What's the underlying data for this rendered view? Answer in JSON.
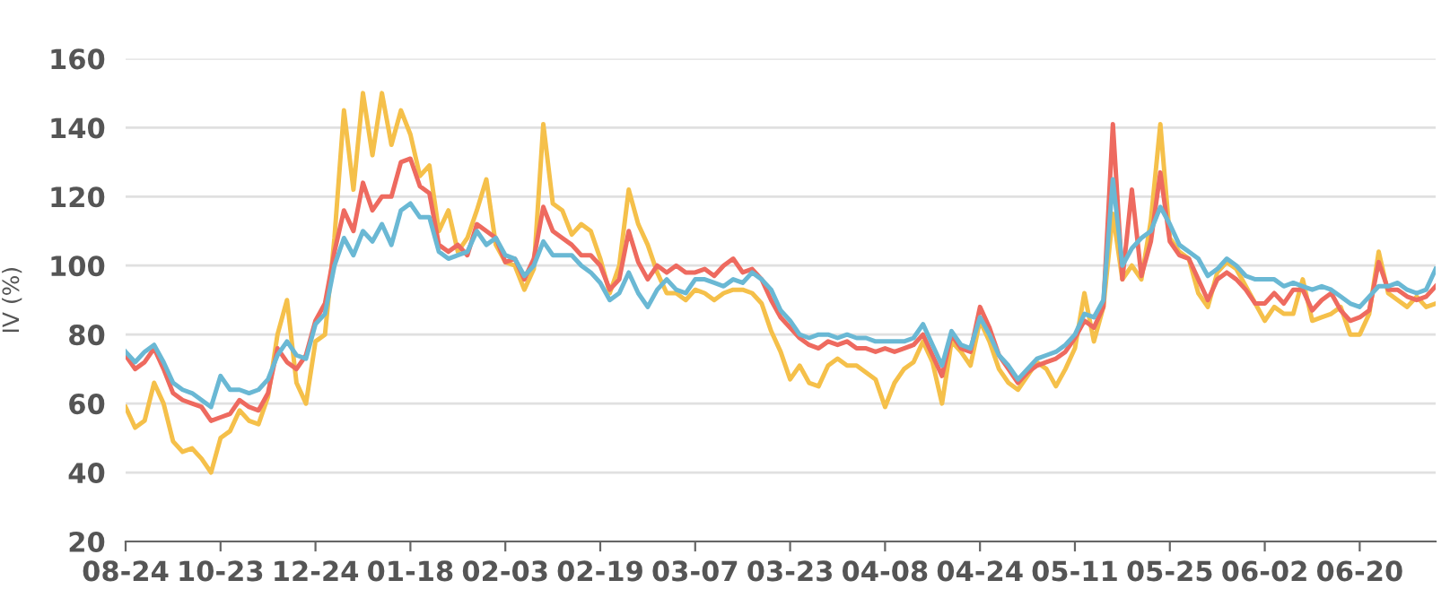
{
  "chart_data": {
    "type": "line",
    "ylabel": "IV (%)",
    "ylim": [
      20,
      160
    ],
    "yticks": [
      20,
      40,
      60,
      80,
      100,
      120,
      140,
      160
    ],
    "grid": "y",
    "marker": "none",
    "line_style": "solid",
    "categories": [
      "08-24",
      null,
      null,
      null,
      null,
      null,
      null,
      null,
      null,
      null,
      "10-23",
      null,
      null,
      null,
      null,
      null,
      null,
      null,
      null,
      null,
      "12-24",
      null,
      null,
      null,
      null,
      null,
      null,
      null,
      null,
      null,
      "01-18",
      null,
      null,
      null,
      null,
      null,
      null,
      null,
      null,
      null,
      "02-03",
      null,
      null,
      null,
      null,
      null,
      null,
      null,
      null,
      null,
      "02-19",
      null,
      null,
      null,
      null,
      null,
      null,
      null,
      null,
      null,
      "03-07",
      null,
      null,
      null,
      null,
      null,
      null,
      null,
      null,
      null,
      "03-23",
      null,
      null,
      null,
      null,
      null,
      null,
      null,
      null,
      null,
      "04-08",
      null,
      null,
      null,
      null,
      null,
      null,
      null,
      null,
      null,
      "04-24",
      null,
      null,
      null,
      null,
      null,
      null,
      null,
      null,
      null,
      "05-11",
      null,
      null,
      null,
      null,
      null,
      null,
      null,
      null,
      null,
      "05-25",
      null,
      null,
      null,
      null,
      null,
      null,
      null,
      null,
      null,
      "06-02",
      null,
      null,
      null,
      null,
      null,
      null,
      null,
      null,
      null,
      "06-20",
      null,
      null,
      null,
      null,
      null,
      null,
      null,
      null
    ],
    "series": [
      {
        "color": "#f5c04a",
        "values": [
          59,
          53,
          55,
          66,
          60,
          49,
          46,
          47,
          44,
          40,
          50,
          52,
          58,
          55,
          54,
          62,
          80,
          90,
          66,
          60,
          78,
          80,
          108,
          145,
          122,
          150,
          132,
          150,
          135,
          145,
          138,
          126,
          129,
          110,
          116,
          104,
          108,
          116,
          125,
          106,
          101,
          100,
          93,
          99,
          141,
          118,
          116,
          109,
          112,
          110,
          102,
          92,
          100,
          122,
          112,
          106,
          98,
          92,
          92,
          90,
          93,
          92,
          90,
          92,
          93,
          93,
          92,
          89,
          81,
          75,
          67,
          71,
          66,
          65,
          71,
          73,
          71,
          71,
          69,
          67,
          59,
          66,
          70,
          72,
          78,
          72,
          60,
          78,
          75,
          71,
          84,
          78,
          70,
          66,
          64,
          68,
          72,
          70,
          65,
          70,
          76,
          92,
          78,
          88,
          115,
          96,
          100,
          96,
          113,
          141,
          108,
          104,
          102,
          92,
          88,
          98,
          101,
          99,
          94,
          89,
          84,
          88,
          86,
          86,
          96,
          84,
          85,
          86,
          88,
          80,
          80,
          86,
          104,
          92,
          90,
          88,
          91,
          88,
          89
        ]
      },
      {
        "color": "#ee6a5f",
        "values": [
          74,
          70,
          72,
          76,
          70,
          63,
          61,
          60,
          59,
          55,
          56,
          57,
          61,
          59,
          58,
          63,
          76,
          72,
          70,
          74,
          84,
          89,
          104,
          116,
          110,
          124,
          116,
          120,
          120,
          130,
          131,
          123,
          121,
          106,
          104,
          106,
          103,
          112,
          110,
          108,
          101,
          102,
          96,
          102,
          117,
          110,
          108,
          106,
          103,
          103,
          100,
          93,
          96,
          110,
          101,
          96,
          100,
          98,
          100,
          98,
          98,
          99,
          97,
          100,
          102,
          98,
          99,
          96,
          90,
          85,
          82,
          79,
          77,
          76,
          78,
          77,
          78,
          76,
          76,
          75,
          76,
          75,
          76,
          77,
          80,
          74,
          68,
          80,
          76,
          75,
          88,
          82,
          74,
          70,
          66,
          69,
          71,
          72,
          73,
          75,
          79,
          84,
          82,
          88,
          141,
          96,
          122,
          97,
          107,
          127,
          107,
          103,
          102,
          96,
          90,
          96,
          98,
          96,
          93,
          89,
          89,
          92,
          89,
          93,
          93,
          87,
          90,
          92,
          87,
          84,
          85,
          87,
          101,
          93,
          93,
          91,
          90,
          91,
          94
        ]
      },
      {
        "color": "#6ab8d4",
        "values": [
          75,
          72,
          75,
          77,
          72,
          66,
          64,
          63,
          61,
          59,
          68,
          64,
          64,
          63,
          64,
          67,
          74,
          78,
          74,
          73,
          83,
          86,
          100,
          108,
          103,
          110,
          107,
          112,
          106,
          116,
          118,
          114,
          114,
          104,
          102,
          103,
          104,
          110,
          106,
          108,
          103,
          102,
          97,
          100,
          107,
          103,
          103,
          103,
          100,
          98,
          95,
          90,
          92,
          98,
          92,
          88,
          93,
          96,
          93,
          92,
          96,
          96,
          95,
          94,
          96,
          95,
          98,
          96,
          93,
          87,
          84,
          80,
          79,
          80,
          80,
          79,
          80,
          79,
          79,
          78,
          78,
          78,
          78,
          79,
          83,
          77,
          71,
          81,
          77,
          76,
          85,
          80,
          74,
          71,
          67,
          70,
          73,
          74,
          75,
          77,
          80,
          86,
          85,
          90,
          125,
          100,
          105,
          108,
          110,
          117,
          112,
          106,
          104,
          102,
          97,
          99,
          102,
          100,
          97,
          96,
          96,
          96,
          94,
          95,
          94,
          93,
          94,
          93,
          91,
          89,
          88,
          91,
          94,
          94,
          95,
          93,
          92,
          93,
          99
        ]
      }
    ]
  }
}
